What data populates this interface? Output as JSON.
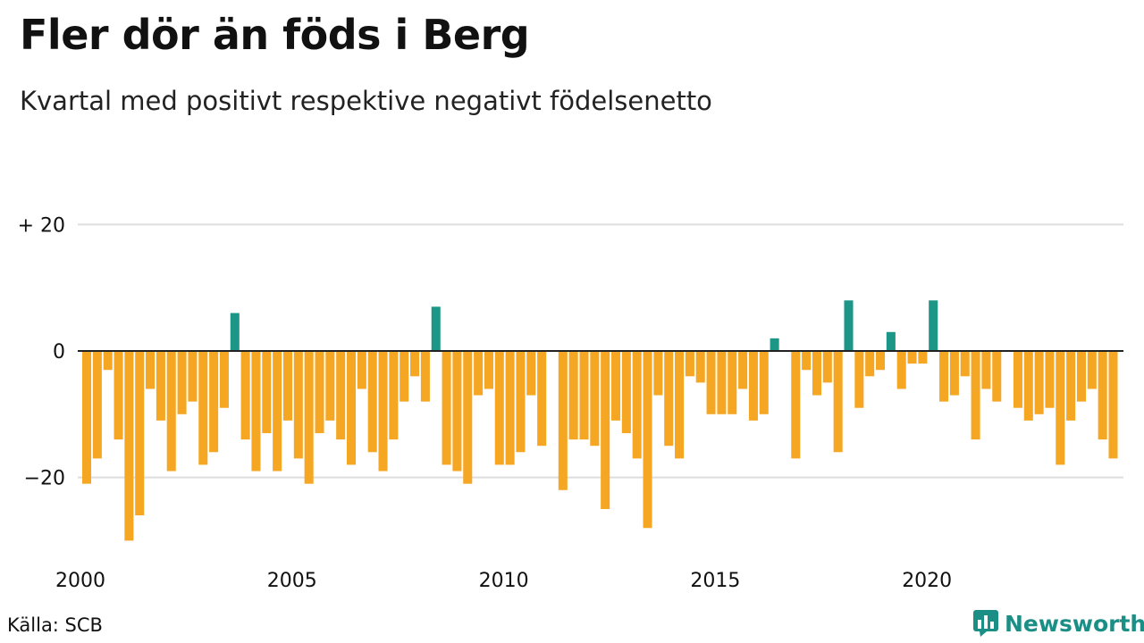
{
  "header": {
    "title": "Fler dör än föds i Berg",
    "subtitle": "Kvartal med positivt respektive negativt födelsenetto"
  },
  "footer": {
    "source": "Källa: SCB",
    "brand": "Newsworthy",
    "brand_icon": "newsworthy-logo-icon"
  },
  "colors": {
    "positive": "#1b9687",
    "negative": "#f5a623",
    "gridline": "#dddddd",
    "zero_line": "#222222",
    "brand": "#1b8e85"
  },
  "chart_data": {
    "type": "bar",
    "title": "Fler dör än föds i Berg",
    "subtitle": "Kvartal med positivt respektive negativt födelsenetto",
    "xlabel": "",
    "ylabel": "",
    "ylim": [
      -32,
      25
    ],
    "y_ticks": [
      {
        "value": 20,
        "label": "+ 20"
      },
      {
        "value": 0,
        "label": "0"
      },
      {
        "value": -20,
        "label": "−20"
      }
    ],
    "x_ticks": [
      {
        "value": 2000,
        "label": "2000"
      },
      {
        "value": 2005,
        "label": "2005"
      },
      {
        "value": 2010,
        "label": "2010"
      },
      {
        "value": 2015,
        "label": "2015"
      },
      {
        "value": 2020,
        "label": "2020"
      }
    ],
    "start_year": 2000,
    "periods_per_year": 4,
    "grid": true,
    "legend": "none",
    "values": [
      -21,
      -17,
      -3,
      -14,
      -30,
      -26,
      -6,
      -11,
      -19,
      -10,
      -8,
      -18,
      -16,
      -9,
      6,
      -14,
      -19,
      -13,
      -19,
      -11,
      -17,
      -21,
      -13,
      -11,
      -14,
      -18,
      -6,
      -16,
      -19,
      -14,
      -8,
      -4,
      -8,
      7,
      -18,
      -19,
      -21,
      -7,
      -6,
      -18,
      -18,
      -16,
      -7,
      -15,
      0,
      -22,
      -14,
      -14,
      -15,
      -25,
      -11,
      -13,
      -17,
      -28,
      -7,
      -15,
      -17,
      -4,
      -5,
      -10,
      -10,
      -10,
      -6,
      -11,
      -10,
      2,
      0,
      -17,
      -3,
      -7,
      -5,
      -16,
      8,
      -9,
      -4,
      -3,
      3,
      -6,
      -2,
      -2,
      8,
      -8,
      -7,
      -4,
      -14,
      -6,
      -8,
      0,
      -9,
      -11,
      -10,
      -9,
      -18,
      -11,
      -8,
      -6,
      -14,
      -17
    ]
  }
}
